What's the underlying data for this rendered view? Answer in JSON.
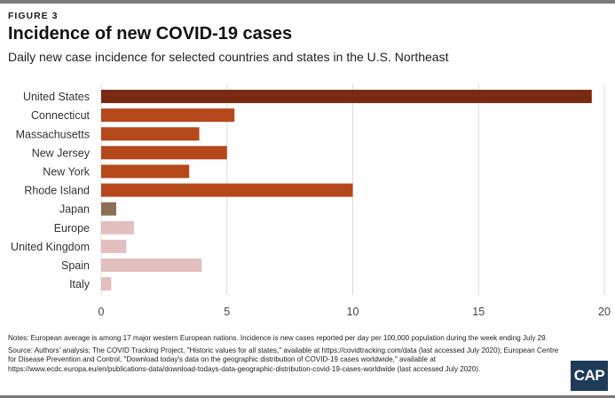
{
  "figure_label": "FIGURE 3",
  "title": "Incidence of new COVID-19 cases",
  "subtitle": "Daily new case incidence for selected countries and states in the U.S. Northeast",
  "notes": "Notes: European average is among 17 major western European nations. Incidence is new cases reported per day per 100,000 population during the week ending July 29.",
  "source": "Source: Authors' analysis; The COVID Tracking Project, \"Historic values for all states,\" available at https://covidtracking.com/data (last accessed July 2020); European Centre for Disease Prevention and Control, \"Download today's data on the geographic distribution of COVID-19 cases worldwide,\" available at https://www.ecdc.europa.eu/en/publications-data/download-todays-data-geographic-distribution-covid-19-cases-worldwide (last accessed July 2020).",
  "logo_text": "CAP",
  "chart_data": {
    "type": "bar",
    "orientation": "horizontal",
    "title": "",
    "xlabel": "",
    "ylabel": "",
    "xlim": [
      0,
      20
    ],
    "xticks": [
      0,
      5,
      10,
      15,
      20
    ],
    "grid": true,
    "categories": [
      "United States",
      "Connecticut",
      "Massachusetts",
      "New Jersey",
      "New York",
      "Rhode Island",
      "Japan",
      "Europe",
      "United Kingdom",
      "Spain",
      "Italy"
    ],
    "values": [
      19.5,
      5.3,
      3.9,
      5.0,
      3.5,
      10.0,
      0.6,
      1.3,
      1.0,
      4.0,
      0.4
    ],
    "colors": [
      "#7a2a12",
      "#b5481a",
      "#b5481a",
      "#b5481a",
      "#b5481a",
      "#b5481a",
      "#8b7056",
      "#e3bfbf",
      "#e3bfbf",
      "#e3bfbf",
      "#e3bfbf"
    ]
  }
}
